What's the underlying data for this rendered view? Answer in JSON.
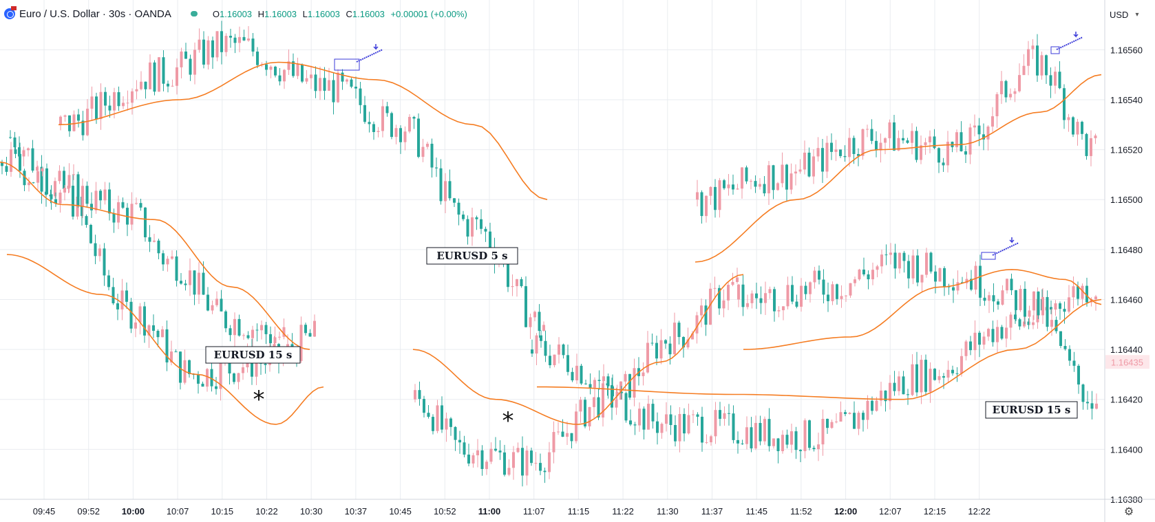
{
  "header": {
    "symbol": "Euro / U.S. Dollar · 30s · OANDA",
    "ohlc": {
      "o_label": "O",
      "o": "1.16003",
      "h_label": "H",
      "h": "1.16003",
      "l_label": "L",
      "l": "1.16003",
      "c_label": "C",
      "c": "1.16003",
      "change": "+0.00001 (+0.00%)"
    }
  },
  "price_scale": {
    "currency": "USD",
    "ticks": [
      "1.16560",
      "1.16540",
      "1.16520",
      "1.16500",
      "1.16480",
      "1.16460",
      "1.16440",
      "1.16420",
      "1.16400",
      "1.16380"
    ],
    "last_price": "1.16435"
  },
  "time_axis": {
    "ticks": [
      {
        "label": "09:45",
        "bold": false
      },
      {
        "label": "09:52",
        "bold": false
      },
      {
        "label": "10:00",
        "bold": true
      },
      {
        "label": "10:07",
        "bold": false
      },
      {
        "label": "10:15",
        "bold": false
      },
      {
        "label": "10:22",
        "bold": false
      },
      {
        "label": "10:30",
        "bold": false
      },
      {
        "label": "10:37",
        "bold": false
      },
      {
        "label": "10:45",
        "bold": false
      },
      {
        "label": "10:52",
        "bold": false
      },
      {
        "label": "11:00",
        "bold": true
      },
      {
        "label": "11:07",
        "bold": false
      },
      {
        "label": "11:15",
        "bold": false
      },
      {
        "label": "11:22",
        "bold": false
      },
      {
        "label": "11:30",
        "bold": false
      },
      {
        "label": "11:37",
        "bold": false
      },
      {
        "label": "11:45",
        "bold": false
      },
      {
        "label": "11:52",
        "bold": false
      },
      {
        "label": "12:00",
        "bold": true
      },
      {
        "label": "12:07",
        "bold": false
      },
      {
        "label": "12:15",
        "bold": false
      },
      {
        "label": "12:22",
        "bold": false
      }
    ]
  },
  "annotations": {
    "labels": [
      "EURUSD  5 s",
      "EURUSD  15 s",
      "EURUSD  15 s"
    ],
    "asterisks": [
      "*",
      "*"
    ]
  },
  "colors": {
    "up": "#ef9aa6",
    "down": "#26a69a",
    "ma": "#f57c21",
    "grid": "#e9ecf0",
    "marker": "#3a3ad9"
  },
  "chart_data": {
    "type": "candlestick",
    "y_axis": {
      "min": 1.1638,
      "max": 1.1657
    },
    "series": [
      {
        "anchors": [
          [
            0,
            1.16525
          ],
          [
            15,
            1.16505
          ],
          [
            40,
            1.16455
          ],
          [
            60,
            1.1643
          ],
          [
            85,
            1.16435
          ],
          [
            100,
            1.16445
          ]
        ],
        "ma": [
          [
            0,
            1.16478
          ],
          [
            30,
            1.16462
          ],
          [
            60,
            1.1643
          ],
          [
            85,
            1.1641
          ],
          [
            100,
            1.16425
          ]
        ]
      },
      {
        "anchors": [
          [
            0,
            1.16515
          ],
          [
            20,
            1.16505
          ],
          [
            45,
            1.16495
          ],
          [
            60,
            1.16475
          ],
          [
            80,
            1.16452
          ],
          [
            100,
            1.16445
          ]
        ],
        "ma": [
          [
            0,
            1.16515
          ],
          [
            20,
            1.16498
          ],
          [
            50,
            1.16492
          ],
          [
            75,
            1.16465
          ],
          [
            100,
            1.1644
          ]
        ]
      },
      {
        "anchors": [
          [
            0,
            1.1653
          ],
          [
            20,
            1.1655
          ],
          [
            35,
            1.16562
          ],
          [
            55,
            1.16545
          ],
          [
            70,
            1.1653
          ],
          [
            85,
            1.1649
          ],
          [
            100,
            1.1645
          ]
        ],
        "ma": [
          [
            0,
            1.1653
          ],
          [
            25,
            1.1654
          ],
          [
            45,
            1.16555
          ],
          [
            65,
            1.16548
          ],
          [
            85,
            1.1653
          ],
          [
            100,
            1.165
          ]
        ]
      },
      {
        "anchors": [
          [
            0,
            1.1642
          ],
          [
            15,
            1.164
          ],
          [
            35,
            1.16395
          ],
          [
            60,
            1.1642
          ],
          [
            80,
            1.16445
          ],
          [
            100,
            1.16465
          ]
        ],
        "ma": [
          [
            0,
            1.1644
          ],
          [
            25,
            1.1642
          ],
          [
            50,
            1.1641
          ],
          [
            75,
            1.16435
          ],
          [
            100,
            1.1647
          ]
        ]
      },
      {
        "anchors": [
          [
            0,
            1.1644
          ],
          [
            25,
            1.1641
          ],
          [
            50,
            1.16405
          ],
          [
            70,
            1.1643
          ],
          [
            85,
            1.1645
          ],
          [
            100,
            1.16465
          ]
        ],
        "ma": [
          [
            0,
            1.16425
          ],
          [
            35,
            1.16422
          ],
          [
            65,
            1.1642
          ],
          [
            85,
            1.1644
          ],
          [
            100,
            1.1646
          ]
        ]
      },
      {
        "anchors": [
          [
            0,
            1.165
          ],
          [
            20,
            1.1651
          ],
          [
            45,
            1.16525
          ],
          [
            65,
            1.1652
          ],
          [
            85,
            1.16555
          ],
          [
            100,
            1.1652
          ]
        ],
        "ma": [
          [
            0,
            1.16475
          ],
          [
            25,
            1.165
          ],
          [
            45,
            1.1652
          ],
          [
            65,
            1.16522
          ],
          [
            85,
            1.16535
          ],
          [
            100,
            1.1655
          ]
        ]
      },
      {
        "anchors": [
          [
            0,
            1.1646
          ],
          [
            25,
            1.16465
          ],
          [
            45,
            1.16475
          ],
          [
            60,
            1.1647
          ],
          [
            80,
            1.1646
          ],
          [
            100,
            1.1642
          ]
        ],
        "ma": [
          [
            0,
            1.1644
          ],
          [
            30,
            1.16445
          ],
          [
            55,
            1.16465
          ],
          [
            75,
            1.16472
          ],
          [
            90,
            1.16468
          ],
          [
            100,
            1.16458
          ]
        ]
      }
    ]
  }
}
